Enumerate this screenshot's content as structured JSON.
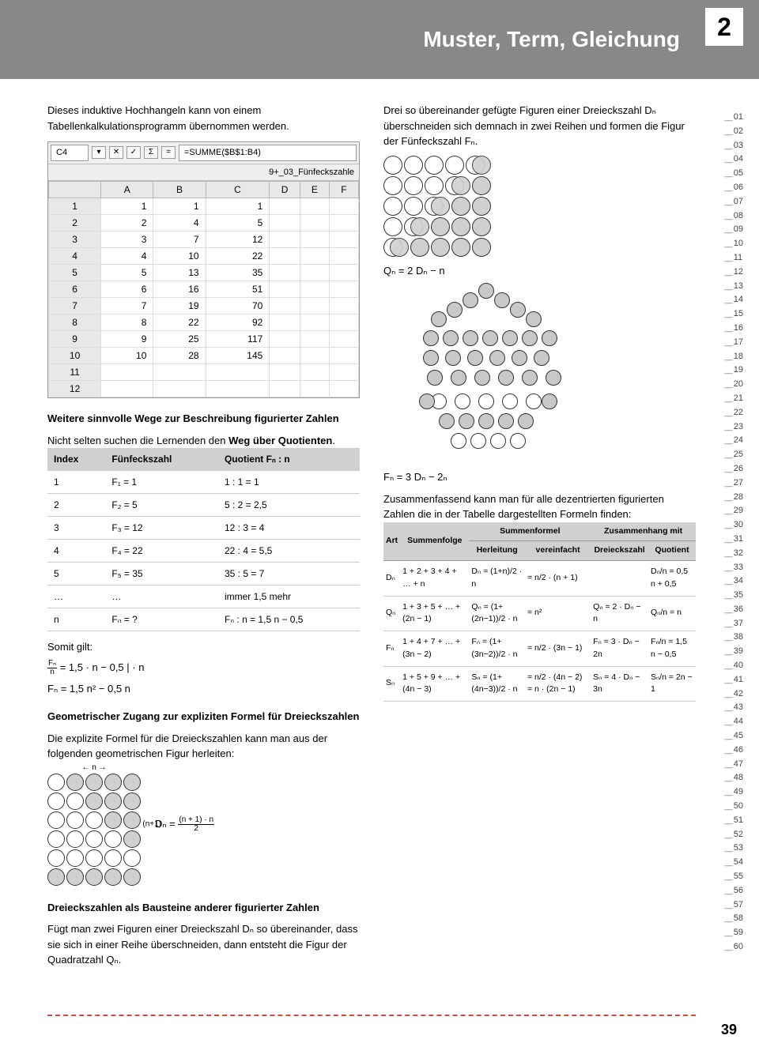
{
  "header": {
    "title": "Muster, Term, Gleichung",
    "chapter_num": "2"
  },
  "page_number": "39",
  "col1": {
    "intro": "Dieses induktive Hochhangeln kann von einem Tabellenkalkulationsprogramm übernommen werden.",
    "spreadsheet": {
      "cell_ref": "C4",
      "formula": "=SUMME($B$1:B4)",
      "filename": "9+_03_Fünfeckszahle",
      "col_heads": [
        "",
        "A",
        "B",
        "C",
        "D",
        "E",
        "F"
      ],
      "rows": [
        [
          "1",
          "1",
          "1",
          "1",
          "",
          "",
          ""
        ],
        [
          "2",
          "2",
          "4",
          "5",
          "",
          "",
          ""
        ],
        [
          "3",
          "3",
          "7",
          "12",
          "",
          "",
          ""
        ],
        [
          "4",
          "4",
          "10",
          "22",
          "",
          "",
          ""
        ],
        [
          "5",
          "5",
          "13",
          "35",
          "",
          "",
          ""
        ],
        [
          "6",
          "6",
          "16",
          "51",
          "",
          "",
          ""
        ],
        [
          "7",
          "7",
          "19",
          "70",
          "",
          "",
          ""
        ],
        [
          "8",
          "8",
          "22",
          "92",
          "",
          "",
          ""
        ],
        [
          "9",
          "9",
          "25",
          "117",
          "",
          "",
          ""
        ],
        [
          "10",
          "10",
          "28",
          "145",
          "",
          "",
          ""
        ],
        [
          "11",
          "",
          "",
          "",
          "",
          "",
          ""
        ],
        [
          "12",
          "",
          "",
          "",
          "",
          "",
          ""
        ]
      ]
    },
    "h_ways": "Weitere sinnvolle Wege zur Beschreibung figurierter Zahlen",
    "p_ways": "Nicht selten suchen die Lernenden den Weg über Quotienten.",
    "tbl_quot": {
      "head": [
        "Index",
        "Fünfeckszahl",
        "Quotient Fₙ : n"
      ],
      "rows": [
        [
          "1",
          "F₁ = 1",
          "1 : 1 = 1"
        ],
        [
          "2",
          "F₂ = 5",
          "5 : 2 = 2,5"
        ],
        [
          "3",
          "F₃ = 12",
          "12 : 3 = 4"
        ],
        [
          "4",
          "F₄ = 22",
          "22 : 4 = 5,5"
        ],
        [
          "5",
          "F₅ = 35",
          "35 : 5 = 7"
        ],
        [
          "…",
          "…",
          "immer 1,5 mehr"
        ],
        [
          "n",
          "Fₙ = ?",
          "Fₙ : n = 1,5 n − 0,5"
        ]
      ]
    },
    "somit": "Somit gilt:",
    "eq1a": "Fₙ",
    "eq1b": "n",
    "eq1c": " = 1,5 · n − 0,5     | · n",
    "eq2": "Fₙ = 1,5 n² − 0,5 n",
    "h_geo": "Geometrischer Zugang zur expliziten Formel für Dreieckszahlen",
    "p_geo": "Die explizite Formel für die Dreieckszahlen kann man aus der folgenden geometrischen Figur herleiten:",
    "dn_formula_a": "Dₙ = ",
    "dn_num": "(n + 1) · n",
    "dn_den": "2",
    "h_baustein": "Dreieckszahlen als Bausteine anderer figurierter Zahlen",
    "p_baustein": "Fügt man zwei Figuren einer Dreieckszahl Dₙ so übereinander, dass sie sich in einer Reihe überschneiden, dann entsteht die Figur der Quadratzahl Qₙ."
  },
  "col2": {
    "intro": "Drei so übereinander gefügte Figuren einer Dreieckszahl Dₙ überschneiden sich demnach in zwei Reihen und formen die Figur der Fünfeckszahl Fₙ.",
    "q_formula": "Qₙ = 2 Dₙ − n",
    "f_formula": "Fₙ = 3 Dₙ − 2ₙ",
    "summary": "Zusammenfassend kann man für alle dezentrierten figurierten Zahlen die in der Tabelle dargestellten Formeln finden:",
    "formula_tbl": {
      "h1": "Art",
      "h2": "Summenfolge",
      "h3s": "Summenformel",
      "h3a": "Herleitung",
      "h3b": "vereinfacht",
      "h4s": "Zusammenhang mit",
      "h4a": "Dreieckszahl",
      "h4b": "Quotient",
      "rows": [
        {
          "art": "Dₙ",
          "sf": "1 + 2 + 3 + 4 + … + n",
          "herl": "Dₙ = (1+n)/2 · n",
          "vf": "= n/2 · (n + 1)",
          "dz": "",
          "q": "Dₙ/n = 0,5 n + 0,5"
        },
        {
          "art": "Qₙ",
          "sf": "1 + 3 + 5 + … + (2n − 1)",
          "herl": "Qₙ = (1+(2n−1))/2 · n",
          "vf": "= n²",
          "dz": "Qₙ = 2 · Dₙ − n",
          "q": "Qₙ/n = n"
        },
        {
          "art": "Fₙ",
          "sf": "1 + 4 + 7 + … + (3n − 2)",
          "herl": "Fₙ = (1+(3n−2))/2 · n",
          "vf": "= n/2 · (3n − 1)",
          "dz": "Fₙ = 3 · Dₙ − 2n",
          "q": "Fₙ/n = 1,5 n − 0,5"
        },
        {
          "art": "Sₙ",
          "sf": "1 + 5 + 9 + … + (4n − 3)",
          "herl": "Sₙ = (1+(4n−3))/2 · n",
          "vf": "= n/2 · (4n − 2) = n · (2n − 1)",
          "dz": "Sₙ = 4 · Dₙ − 3n",
          "q": "Sₙ/n = 2n − 1"
        }
      ]
    }
  },
  "styling": {
    "header_bg": "#888888",
    "header_text_color": "#ffffff",
    "table_header_bg": "#d0d0d0",
    "dashed_color": "#d44444",
    "body_font_size": 13,
    "body_text_color": "#000000"
  }
}
